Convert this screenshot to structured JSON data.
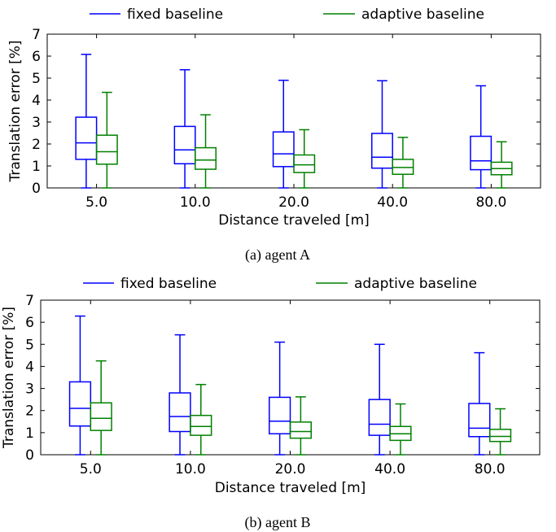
{
  "chart_data": [
    {
      "type": "boxplot",
      "caption": "(a) agent A",
      "xlabel": "Distance traveled [m]",
      "ylabel": "Translation error [%]",
      "ylim": [
        0,
        7
      ],
      "yticks": [
        "0",
        "1",
        "2",
        "3",
        "4",
        "5",
        "6",
        "7"
      ],
      "categories": [
        "5.0",
        "10.0",
        "20.0",
        "40.0",
        "80.0"
      ],
      "legend_position": "top",
      "series": [
        {
          "name": "fixed baseline",
          "color": "#0000ff",
          "boxes": [
            {
              "min": 0.0,
              "q1": 1.3,
              "median": 2.05,
              "q3": 3.22,
              "max": 6.08
            },
            {
              "min": 0.0,
              "q1": 1.1,
              "median": 1.73,
              "q3": 2.8,
              "max": 5.38
            },
            {
              "min": 0.0,
              "q1": 0.97,
              "median": 1.55,
              "q3": 2.55,
              "max": 4.9
            },
            {
              "min": 0.0,
              "q1": 0.9,
              "median": 1.4,
              "q3": 2.48,
              "max": 4.88
            },
            {
              "min": 0.0,
              "q1": 0.83,
              "median": 1.23,
              "q3": 2.35,
              "max": 4.65
            }
          ]
        },
        {
          "name": "adaptive baseline",
          "color": "#008000",
          "boxes": [
            {
              "min": 0.0,
              "q1": 1.08,
              "median": 1.65,
              "q3": 2.4,
              "max": 4.35
            },
            {
              "min": 0.0,
              "q1": 0.85,
              "median": 1.27,
              "q3": 1.83,
              "max": 3.33
            },
            {
              "min": 0.0,
              "q1": 0.7,
              "median": 1.05,
              "q3": 1.5,
              "max": 2.65
            },
            {
              "min": 0.0,
              "q1": 0.62,
              "median": 0.93,
              "q3": 1.3,
              "max": 2.3
            },
            {
              "min": 0.0,
              "q1": 0.6,
              "median": 0.88,
              "q3": 1.17,
              "max": 2.1
            }
          ]
        }
      ]
    },
    {
      "type": "boxplot",
      "caption": "(b) agent B",
      "xlabel": "Distance traveled [m]",
      "ylabel": "Translation error [%]",
      "ylim": [
        0,
        7
      ],
      "yticks": [
        "0",
        "1",
        "2",
        "3",
        "4",
        "5",
        "6",
        "7"
      ],
      "categories": [
        "5.0",
        "10.0",
        "20.0",
        "40.0",
        "80.0"
      ],
      "legend_position": "top",
      "series": [
        {
          "name": "fixed baseline",
          "color": "#0000ff",
          "boxes": [
            {
              "min": 0.0,
              "q1": 1.3,
              "median": 2.1,
              "q3": 3.3,
              "max": 6.28
            },
            {
              "min": 0.0,
              "q1": 1.05,
              "median": 1.73,
              "q3": 2.8,
              "max": 5.43
            },
            {
              "min": 0.0,
              "q1": 0.95,
              "median": 1.52,
              "q3": 2.6,
              "max": 5.1
            },
            {
              "min": 0.0,
              "q1": 0.88,
              "median": 1.38,
              "q3": 2.5,
              "max": 5.0
            },
            {
              "min": 0.0,
              "q1": 0.82,
              "median": 1.2,
              "q3": 2.32,
              "max": 4.62
            }
          ]
        },
        {
          "name": "adaptive baseline",
          "color": "#008000",
          "boxes": [
            {
              "min": 0.0,
              "q1": 1.1,
              "median": 1.65,
              "q3": 2.35,
              "max": 4.25
            },
            {
              "min": 0.0,
              "q1": 0.88,
              "median": 1.28,
              "q3": 1.78,
              "max": 3.18
            },
            {
              "min": 0.0,
              "q1": 0.75,
              "median": 1.05,
              "q3": 1.48,
              "max": 2.62
            },
            {
              "min": 0.0,
              "q1": 0.65,
              "median": 0.95,
              "q3": 1.28,
              "max": 2.3
            },
            {
              "min": 0.0,
              "q1": 0.6,
              "median": 0.83,
              "q3": 1.15,
              "max": 2.08
            }
          ]
        }
      ]
    }
  ]
}
